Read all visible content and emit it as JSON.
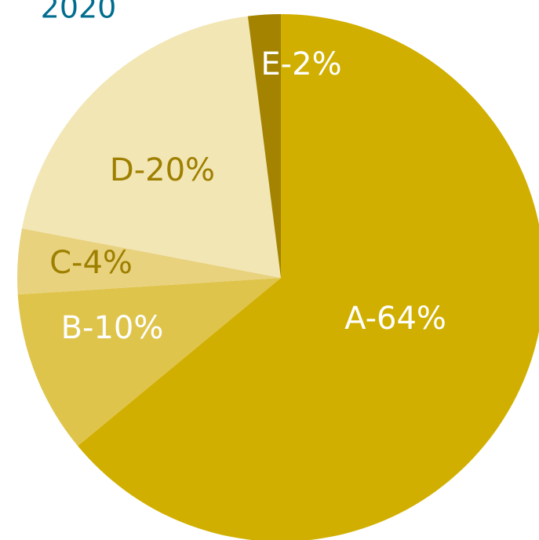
{
  "chart_data": {
    "type": "pie",
    "title": "2020",
    "values": [
      64,
      10,
      4,
      20,
      2
    ],
    "value_labels": [
      "A-64%",
      "B-10%",
      "C-4%",
      "D-20%",
      "E-2%"
    ],
    "colors": [
      "#d1af00",
      "#dfc44c",
      "#e8d27e",
      "#f2e6b4",
      "#a38300"
    ],
    "label_colors": [
      "#ffffff",
      "#ffffff",
      "#9e7f00",
      "#9e7f00",
      "#ffffff"
    ],
    "start_angle": 0,
    "direction": "clockwise"
  }
}
